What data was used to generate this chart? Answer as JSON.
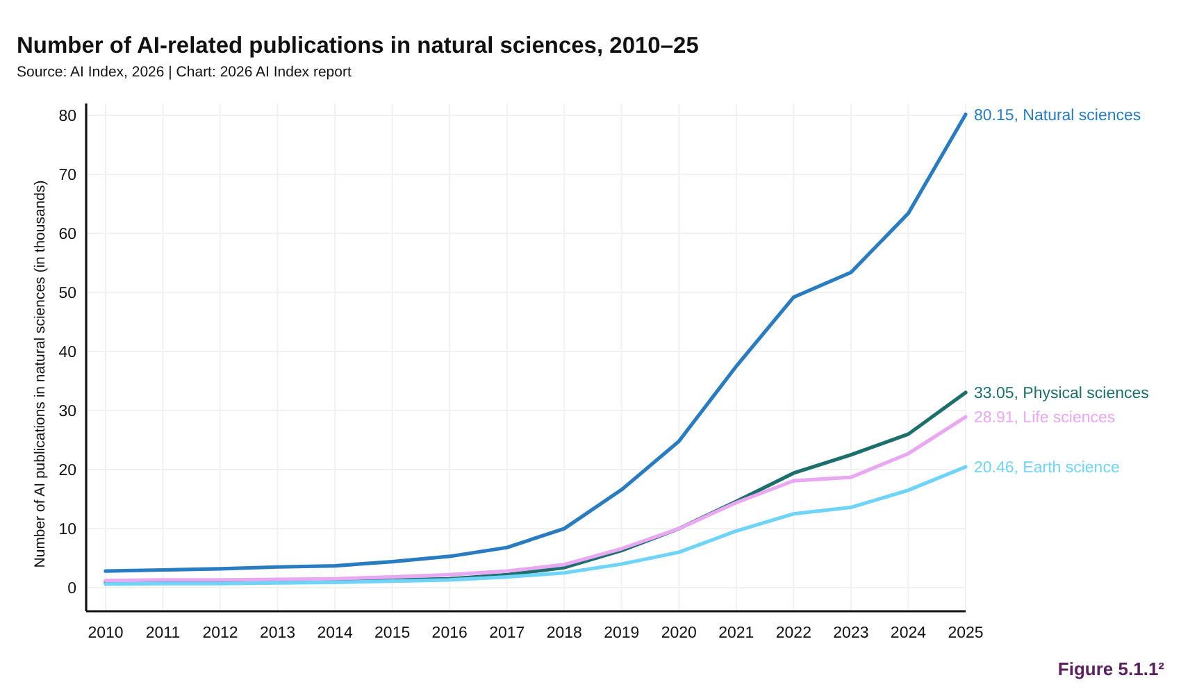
{
  "chart_data": {
    "type": "line",
    "title": "Number of AI-related publications in natural sciences, 2010–25",
    "subtitle": "Source: AI Index, 2026 | Chart: 2026 AI Index report",
    "ylabel": "Number of AI publications in natural sciences (in thousands)",
    "annotations": [
      "Figure 5.1.1²"
    ],
    "categories": [
      "2010",
      "2011",
      "2012",
      "2013",
      "2014",
      "2015",
      "2016",
      "2017",
      "2018",
      "2019",
      "2020",
      "2021",
      "2022",
      "2023",
      "2024",
      "2025"
    ],
    "series": [
      {
        "name": "Natural sciences",
        "color": "#2a7cc0",
        "values": [
          2.8,
          3.0,
          3.2,
          3.5,
          3.7,
          4.4,
          5.3,
          6.8,
          10.0,
          16.6,
          24.8,
          37.5,
          49.2,
          53.4,
          63.4,
          80.15
        ],
        "value_labels": [
          null,
          null,
          null,
          null,
          null,
          null,
          null,
          null,
          null,
          null,
          null,
          null,
          null,
          null,
          null,
          "80.15,"
        ]
      },
      {
        "name": "Physical sciences",
        "color": "#1d6f6c",
        "values": [
          0.9,
          0.9,
          1.0,
          1.0,
          1.1,
          1.3,
          1.5,
          2.2,
          3.4,
          6.3,
          10.0,
          14.6,
          19.4,
          22.5,
          26.0,
          33.05
        ],
        "value_labels": [
          null,
          null,
          null,
          null,
          null,
          null,
          null,
          null,
          null,
          null,
          null,
          null,
          null,
          null,
          null,
          "33.05,"
        ]
      },
      {
        "name": "Life sciences",
        "color": "#e9a8f2",
        "values": [
          1.2,
          1.3,
          1.3,
          1.4,
          1.5,
          1.8,
          2.2,
          2.8,
          3.9,
          6.6,
          10.0,
          14.4,
          18.1,
          18.7,
          22.7,
          28.91
        ],
        "value_labels": [
          null,
          null,
          null,
          null,
          null,
          null,
          null,
          null,
          null,
          null,
          null,
          null,
          null,
          null,
          null,
          "28.91,"
        ]
      },
      {
        "name": "Earth science",
        "color": "#6fd4f8",
        "values": [
          0.6,
          0.7,
          0.7,
          0.8,
          0.9,
          1.1,
          1.3,
          1.8,
          2.5,
          4.0,
          6.0,
          9.6,
          12.5,
          13.6,
          16.5,
          20.46
        ],
        "value_labels": [
          null,
          null,
          null,
          null,
          null,
          null,
          null,
          null,
          null,
          null,
          null,
          null,
          null,
          null,
          null,
          "20.46,"
        ]
      }
    ],
    "ylim": [
      -4,
      82
    ],
    "yticks": [
      0,
      10,
      20,
      30,
      40,
      50,
      60,
      70,
      80
    ],
    "grid": true,
    "line_style": "solid"
  }
}
